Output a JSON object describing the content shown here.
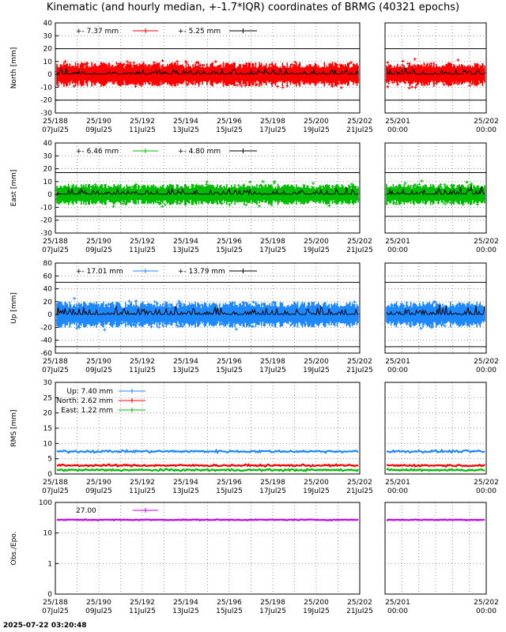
{
  "title": "Kinematic (and hourly median, +-1.7*IQR) coordinates of BRMG (40321 epochs)",
  "timestamp": "2025-07-22 03:20:48",
  "colors": {
    "north": "#ff0000",
    "east": "#00bb00",
    "up": "#1e88ff",
    "obs": "#c000ff",
    "median": "#000000"
  },
  "chart_data": [
    {
      "type": "scatter",
      "panel": "north",
      "ylabel": "North [mm]",
      "ylim": [
        -30,
        40
      ],
      "yticks": [
        -30,
        -20,
        -10,
        0,
        10,
        20,
        30,
        40
      ],
      "hlines": [
        20,
        -20
      ],
      "legend": [
        {
          "prefix": "+-",
          "value": "7.37 mm",
          "color": "#ff0000"
        },
        {
          "prefix": "+-",
          "value": "5.25 mm",
          "color": "#000000"
        }
      ],
      "series": [
        {
          "color": "#ff0000",
          "center": 0,
          "spread": 8,
          "outlier": 16
        },
        {
          "color": "#000000",
          "center": 0,
          "spread": 5,
          "median": true
        }
      ]
    },
    {
      "type": "scatter",
      "panel": "east",
      "ylabel": "East [mm]",
      "ylim": [
        -30,
        40
      ],
      "yticks": [
        -30,
        -20,
        -10,
        0,
        10,
        20,
        30,
        40
      ],
      "hlines": [
        17,
        -17
      ],
      "legend": [
        {
          "prefix": "+-",
          "value": "6.46 mm",
          "color": "#00bb00"
        },
        {
          "prefix": "+-",
          "value": "4.80 mm",
          "color": "#000000"
        }
      ],
      "series": [
        {
          "color": "#00bb00",
          "center": 0,
          "spread": 7,
          "outlier": 14
        },
        {
          "color": "#000000",
          "center": 0,
          "spread": 5,
          "median": true
        }
      ]
    },
    {
      "type": "scatter",
      "panel": "up",
      "ylabel": "Up [mm]",
      "ylim": [
        -60,
        80
      ],
      "yticks": [
        -60,
        -40,
        -20,
        0,
        20,
        40,
        60,
        80
      ],
      "hlines": [
        50,
        -50
      ],
      "legend": [
        {
          "prefix": "+-",
          "value": "17.01 mm",
          "color": "#1e88ff"
        },
        {
          "prefix": "+-",
          "value": "13.79 mm",
          "color": "#000000"
        }
      ],
      "series": [
        {
          "color": "#1e88ff",
          "center": 0,
          "spread": 17,
          "outlier": 30
        },
        {
          "color": "#000000",
          "center": 0,
          "spread": 12,
          "median": true
        }
      ]
    },
    {
      "type": "line",
      "panel": "rms",
      "ylabel": "RMS [mm]",
      "ylim": [
        0,
        30
      ],
      "yticks": [
        0,
        5,
        10,
        15,
        20,
        25,
        30
      ],
      "legend": [
        {
          "name": "Up:",
          "value": "7.40 mm",
          "color": "#1e88ff"
        },
        {
          "name": "North:",
          "value": "2.62 mm",
          "color": "#ff0000"
        },
        {
          "name": "East:",
          "value": "1.22 mm",
          "color": "#00bb00"
        }
      ],
      "series": [
        {
          "name": "Up",
          "color": "#1e88ff",
          "center": 7.4,
          "spread": 0.7
        },
        {
          "name": "North",
          "color": "#ff0000",
          "center": 2.8,
          "spread": 0.6
        },
        {
          "name": "East",
          "color": "#00bb00",
          "center": 1.3,
          "spread": 0.6
        }
      ]
    },
    {
      "type": "line",
      "panel": "obs",
      "ylabel": "Obs./Epo.",
      "log": true,
      "ylim": [
        0,
        100
      ],
      "yticks": [
        0,
        1,
        10,
        100
      ],
      "legend": [
        {
          "prefix": "",
          "value": "27.00",
          "color": "#c000ff"
        }
      ],
      "series": [
        {
          "color": "#c000ff",
          "center": 27,
          "spread": 2
        }
      ]
    }
  ],
  "x_ticks_main": [
    {
      "top": "25/188",
      "bottom": "07Jul25"
    },
    {
      "top": "25/190",
      "bottom": "09Jul25"
    },
    {
      "top": "25/192",
      "bottom": "11Jul25"
    },
    {
      "top": "25/194",
      "bottom": "13Jul25"
    },
    {
      "top": "25/196",
      "bottom": "15Jul25"
    },
    {
      "top": "25/198",
      "bottom": "17Jul25"
    },
    {
      "top": "25/200",
      "bottom": "19Jul25"
    },
    {
      "top": "25/202",
      "bottom": "21Jul25"
    }
  ],
  "x_ticks_zoom": [
    {
      "top": "25/201",
      "bottom": "00:00"
    },
    {
      "top": "25/202",
      "bottom": "00:00"
    }
  ]
}
